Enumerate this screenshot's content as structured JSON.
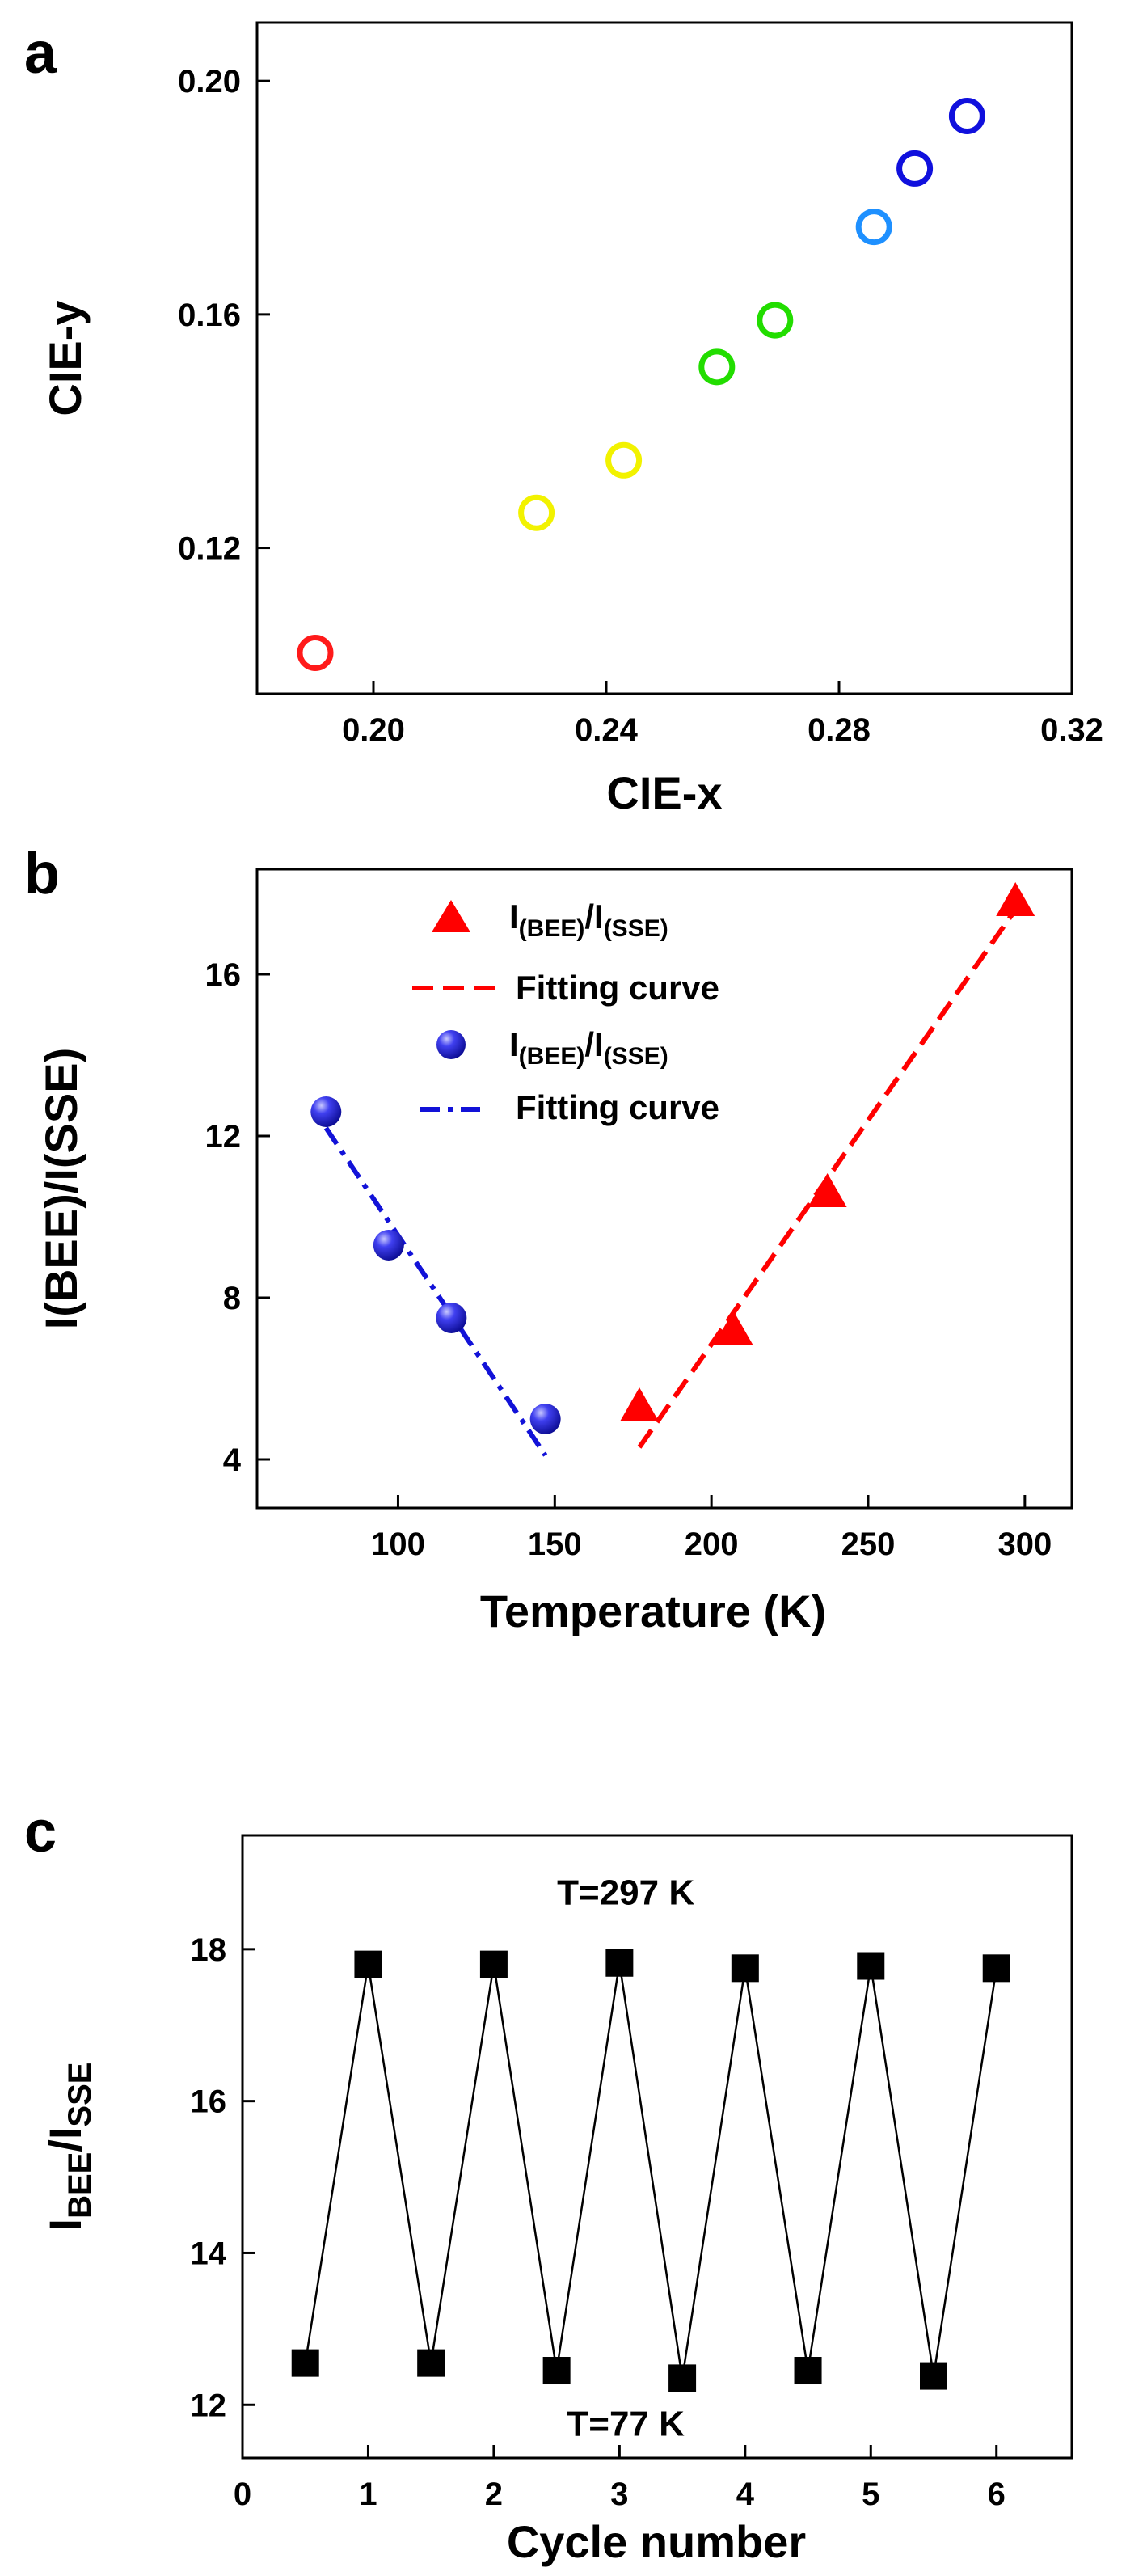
{
  "chart_data": [
    {
      "panel": "a",
      "type": "scatter",
      "title": "",
      "xlabel": "CIE-x",
      "ylabel": "CIE-y",
      "xlim": [
        0.18,
        0.32
      ],
      "ylim": [
        0.095,
        0.21
      ],
      "xticks": [
        0.2,
        0.24,
        0.28,
        0.32
      ],
      "xtick_labels": [
        "0.20",
        "0.24",
        "0.28",
        "0.32"
      ],
      "yticks": [
        0.12,
        0.16,
        0.2
      ],
      "ytick_labels": [
        "0.12",
        "0.16",
        "0.20"
      ],
      "points": [
        {
          "x": 0.19,
          "y": 0.102,
          "color": "#ff1a1a"
        },
        {
          "x": 0.228,
          "y": 0.126,
          "color": "#f2f200"
        },
        {
          "x": 0.243,
          "y": 0.135,
          "color": "#f2f200"
        },
        {
          "x": 0.259,
          "y": 0.151,
          "color": "#22dd00"
        },
        {
          "x": 0.269,
          "y": 0.159,
          "color": "#22dd00"
        },
        {
          "x": 0.286,
          "y": 0.175,
          "color": "#1e90ff"
        },
        {
          "x": 0.293,
          "y": 0.185,
          "color": "#1010dd"
        },
        {
          "x": 0.302,
          "y": 0.194,
          "color": "#1010dd"
        }
      ]
    },
    {
      "panel": "b",
      "type": "scatter",
      "title": "",
      "xlabel": "Temperature (K)",
      "ylabel_main": "I",
      "ylabel_sub1": "(BEE)",
      "ylabel_mid": "/I",
      "ylabel_sub2": "(SSE)",
      "xlim": [
        55,
        315
      ],
      "ylim": [
        2.8,
        18.6
      ],
      "xticks": [
        100,
        150,
        200,
        250,
        300
      ],
      "xtick_labels": [
        "100",
        "150",
        "200",
        "250",
        "300"
      ],
      "yticks": [
        4,
        8,
        12,
        16
      ],
      "ytick_labels": [
        "4",
        "8",
        "12",
        "16"
      ],
      "series": [
        {
          "name": "I(BEE)/I(SSE)",
          "marker": "triangle",
          "color": "#ff0000",
          "x": [
            177,
            207,
            237,
            297
          ],
          "y": [
            5.3,
            7.2,
            10.6,
            17.8
          ],
          "fit_x": [
            177,
            297
          ],
          "fit_y": [
            4.3,
            17.6
          ]
        },
        {
          "name": "I(BEE)/I(SSE)",
          "marker": "sphere",
          "color": "#1212d8",
          "x": [
            77,
            97,
            117,
            147
          ],
          "y": [
            12.6,
            9.3,
            7.5,
            5.0
          ],
          "fit_x": [
            77,
            147
          ],
          "fit_y": [
            12.2,
            4.1
          ]
        }
      ],
      "legend": [
        {
          "main": "I",
          "sub1": "(BEE)",
          "mid": "/I",
          "sub2": "(SSE)",
          "kind": "triangle",
          "color": "#ff0000"
        },
        {
          "text": "Fitting curve",
          "kind": "dash",
          "color": "#ff0000"
        },
        {
          "main": "I",
          "sub1": "(BEE)",
          "mid": "/I",
          "sub2": "(SSE)",
          "kind": "sphere",
          "color": "#1212d8"
        },
        {
          "text": "Fitting curve",
          "kind": "dashdot",
          "color": "#1212d8"
        }
      ],
      "legend_position": "top-right"
    },
    {
      "panel": "c",
      "type": "line",
      "title": "",
      "xlabel": "Cycle number",
      "ylabel_main": "I",
      "ylabel_sub1": "BEE",
      "ylabel_mid": "/I",
      "ylabel_sub2": "SSE",
      "xlim": [
        0,
        6.6
      ],
      "ylim": [
        11.3,
        19.5
      ],
      "xticks": [
        0,
        1,
        2,
        3,
        4,
        5,
        6
      ],
      "xtick_labels": [
        "0",
        "1",
        "2",
        "3",
        "4",
        "5",
        "6"
      ],
      "yticks": [
        12,
        14,
        16,
        18
      ],
      "ytick_labels": [
        "12",
        "14",
        "16",
        "18"
      ],
      "series": [
        {
          "name": "I_BEE/I_SSE",
          "marker": "square",
          "color": "#000000",
          "x": [
            0.5,
            1,
            1.5,
            2,
            2.5,
            3,
            3.5,
            4,
            4.5,
            5,
            5.5,
            6
          ],
          "y": [
            12.55,
            17.8,
            12.55,
            17.8,
            12.45,
            17.82,
            12.35,
            17.75,
            12.45,
            17.78,
            12.38,
            17.75
          ]
        }
      ],
      "annotations": [
        {
          "text": "T=297 K",
          "x": 3.05,
          "y": 18.75
        },
        {
          "text": "T=77 K",
          "x": 3.05,
          "y": 11.75
        }
      ]
    }
  ]
}
